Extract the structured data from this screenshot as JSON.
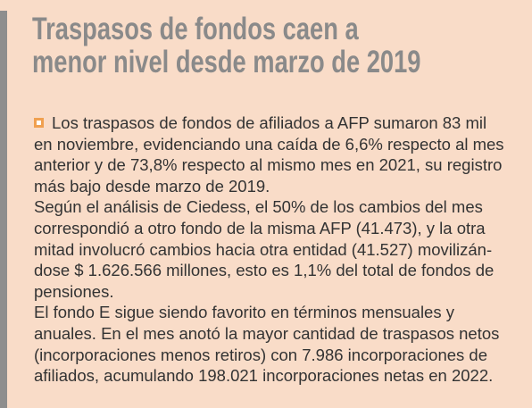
{
  "header": {
    "title": [
      "Traspasos de fondos caen a",
      "menor nivel desde marzo de 2019"
    ]
  },
  "paragraphs": [
    [
      "Los traspasos de fondos de afiliados a AFP sumaron 83 mil",
      "en noviembre, evidenciando una caída de 6,6% respecto al mes",
      "anterior y de 73,8% respecto al mismo mes en 2021, su registro",
      "más bajo desde marzo de 2019."
    ],
    [
      "Según el análisis de Ciedess, el 50% de los cambios del mes",
      "correspondió a otro fondo de la misma AFP (41.473), y la otra",
      "mitad involucró cambios hacia otra entidad (41.527) movilizán-",
      "dose $ 1.626.566 millones, esto es 1,1% del total de fondos de",
      "pensiones."
    ],
    [
      "El fondo E sigue siendo favorito en términos mensuales y",
      "anuales. En el mes anotó la mayor cantidad de traspasos netos",
      "(incorporaciones menos retiros) con 7.986 incorporaciones de",
      "afiliados, acumulando 198.021 incorporaciones netas en 2022."
    ]
  ]
}
